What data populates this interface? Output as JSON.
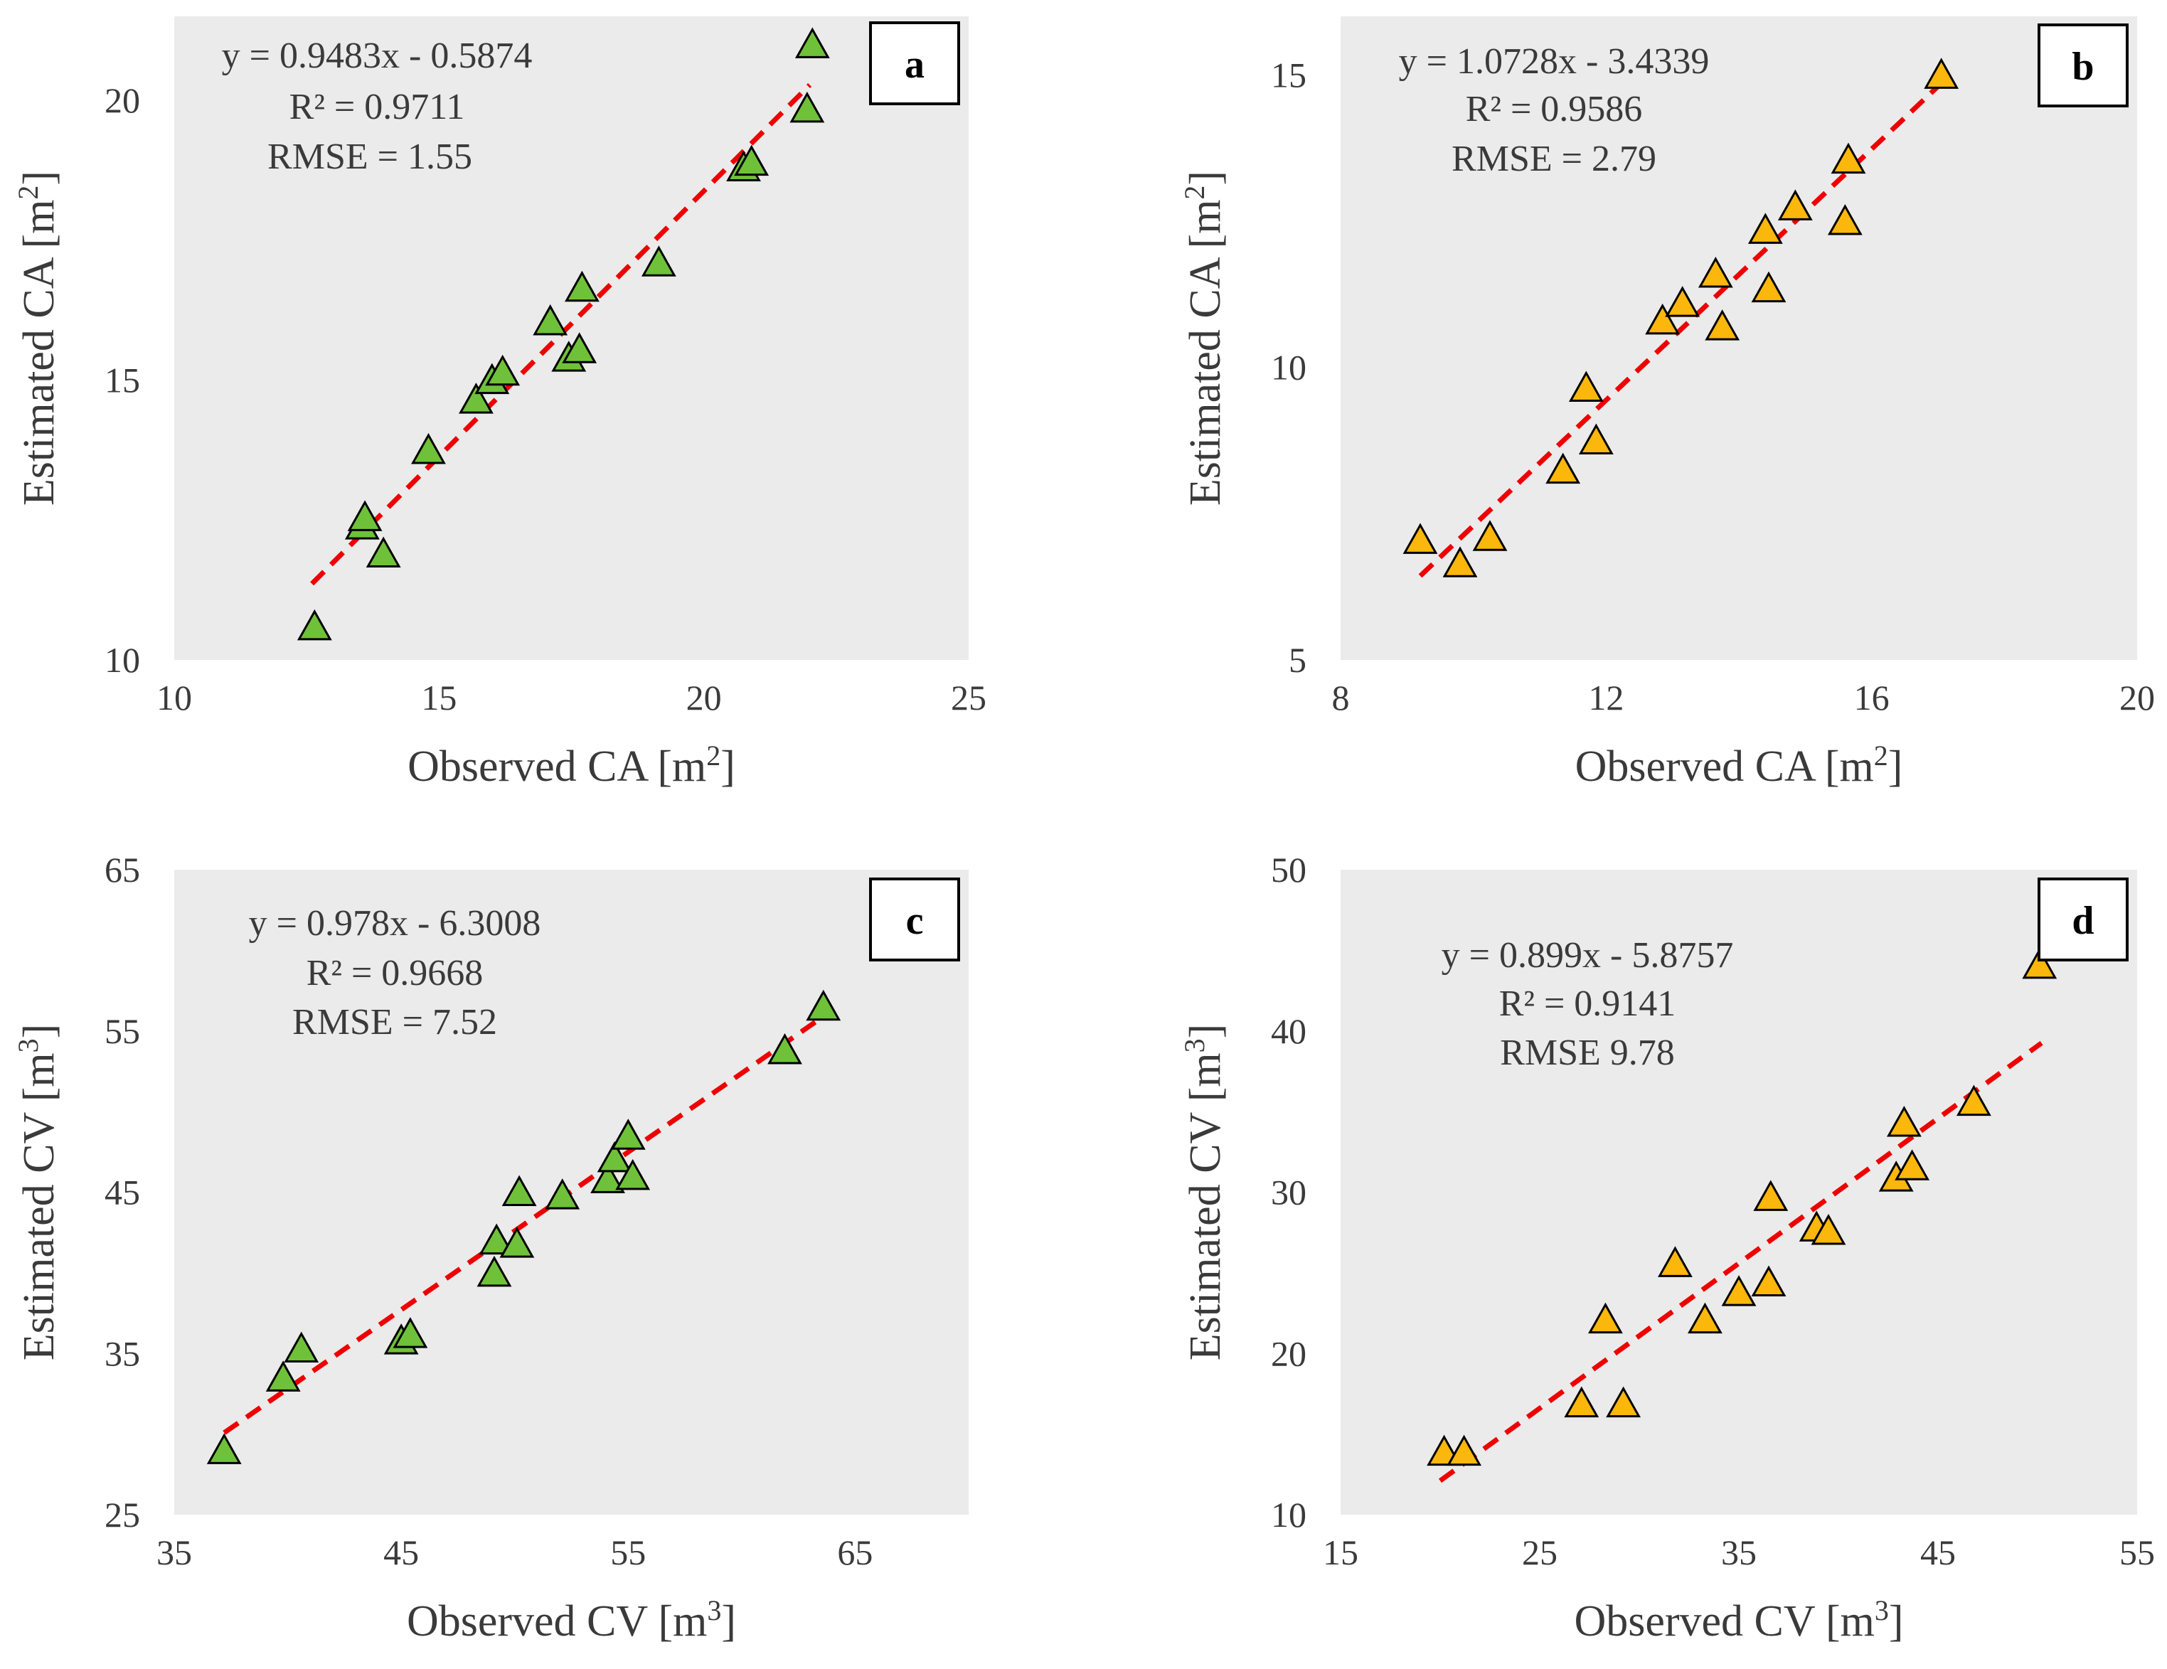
{
  "colors": {
    "panel_bg": "#ebebeb",
    "trend": "#ee0000",
    "green_marker": "#70c13a",
    "orange_marker": "#fbb70b",
    "marker_edge": "#000000"
  },
  "chart_data": [
    {
      "type": "scatter",
      "panel_label": "a",
      "xlabel": "Observed CA [m",
      "xlabel_sup": "2",
      "xlabel_end": "]",
      "ylabel": "Estimated CA [m",
      "ylabel_sup": "2",
      "ylabel_end": "]",
      "xlim": [
        10,
        25
      ],
      "ylim": [
        10,
        21.5
      ],
      "xticks": [
        10,
        15,
        20,
        25
      ],
      "yticks": [
        10,
        15,
        20
      ],
      "grid": false,
      "marker": "triangle",
      "marker_color": "green",
      "equation_lines": [
        "y = 0.9483x - 0.5874",
        "R² = 0.9711",
        "RMSE = 1.55"
      ],
      "trendline": {
        "slope": 0.9483,
        "intercept": -0.5874,
        "x_range": [
          12.6,
          22
        ]
      },
      "x": [
        12.65,
        13.55,
        13.6,
        13.95,
        14.8,
        15.7,
        16.0,
        16.2,
        17.1,
        17.45,
        17.65,
        17.7,
        19.15,
        20.75,
        20.9,
        21.95,
        22.05
      ],
      "y": [
        10.6,
        12.4,
        12.55,
        11.9,
        13.75,
        14.65,
        15.0,
        15.15,
        16.05,
        15.4,
        15.55,
        16.65,
        17.1,
        18.8,
        18.9,
        19.85,
        21.0
      ]
    },
    {
      "type": "scatter",
      "panel_label": "b",
      "xlabel": "Observed CA [m",
      "xlabel_sup": "2",
      "xlabel_end": "]",
      "ylabel": "Estimated CA [m",
      "ylabel_sup": "2",
      "ylabel_end": "]",
      "xlim": [
        8,
        20
      ],
      "ylim": [
        5,
        16
      ],
      "xticks": [
        8,
        12,
        16,
        20
      ],
      "yticks": [
        5,
        10,
        15
      ],
      "grid": false,
      "marker": "triangle",
      "marker_color": "orange",
      "equation_lines": [
        "y = 1.0728x - 3.4339",
        "R² = 0.9586",
        "RMSE = 2.79"
      ],
      "trendline": {
        "slope": 1.0728,
        "intercept": -3.4339,
        "x_range": [
          9.2,
          17
        ]
      },
      "x": [
        9.2,
        9.8,
        10.25,
        11.35,
        11.7,
        11.85,
        12.85,
        13.15,
        13.65,
        13.75,
        14.4,
        14.45,
        14.85,
        15.6,
        15.65,
        17.05
      ],
      "y": [
        7.05,
        6.65,
        7.1,
        8.25,
        9.65,
        8.75,
        10.8,
        11.1,
        11.6,
        10.7,
        12.35,
        11.35,
        12.75,
        12.5,
        13.55,
        15.0
      ]
    },
    {
      "type": "scatter",
      "panel_label": "c",
      "xlabel": "Observed CV [m",
      "xlabel_sup": "3",
      "xlabel_end": "]",
      "ylabel": "Estimated CV [m",
      "ylabel_sup": "3",
      "ylabel_end": "]",
      "xlim": [
        35,
        70
      ],
      "ylim": [
        25,
        65
      ],
      "xticks": [
        35,
        45,
        55,
        65
      ],
      "yticks": [
        25,
        35,
        45,
        55,
        65
      ],
      "grid": false,
      "marker": "triangle",
      "marker_color": "green",
      "equation_lines": [
        "y = 0.978x - 6.3008",
        "R² = 0.9668",
        "RMSE = 7.52"
      ],
      "trendline": {
        "slope": 0.978,
        "intercept": -6.3008,
        "x_range": [
          37.2,
          63.5
        ]
      },
      "x": [
        37.2,
        39.8,
        40.6,
        45.0,
        45.4,
        49.1,
        49.2,
        50.1,
        50.2,
        52.1,
        54.1,
        54.4,
        55.0,
        55.2,
        61.9,
        63.6
      ],
      "y": [
        29.0,
        33.5,
        35.3,
        35.8,
        36.2,
        40.0,
        42.0,
        41.8,
        45.0,
        44.8,
        45.8,
        47.1,
        48.5,
        46.0,
        53.8,
        56.5
      ]
    },
    {
      "type": "scatter",
      "panel_label": "d",
      "xlabel": "Observed CV [m",
      "xlabel_sup": "3",
      "xlabel_end": "]",
      "ylabel": "Estimated CV [m",
      "ylabel_sup": "3",
      "ylabel_end": "]",
      "xlim": [
        15,
        55
      ],
      "ylim": [
        10,
        50
      ],
      "xticks": [
        15,
        25,
        35,
        45,
        55
      ],
      "yticks": [
        10,
        20,
        30,
        40,
        50
      ],
      "grid": false,
      "marker": "triangle",
      "marker_color": "orange",
      "equation_lines": [
        "y = 0.899x - 5.8757",
        "R² = 0.9141",
        "RMSE 9.78"
      ],
      "trendline": {
        "slope": 0.899,
        "intercept": -5.8757,
        "x_range": [
          20,
          50.2
        ]
      },
      "x": [
        20.2,
        21.2,
        27.1,
        28.3,
        29.2,
        31.8,
        33.3,
        35.0,
        36.5,
        36.6,
        38.9,
        39.5,
        42.9,
        43.3,
        43.7,
        46.8,
        50.1
      ],
      "y": [
        13.9,
        13.9,
        16.9,
        22.1,
        16.9,
        25.6,
        22.1,
        23.8,
        24.4,
        29.7,
        27.8,
        27.6,
        30.9,
        34.3,
        31.6,
        35.6,
        44.1
      ]
    }
  ]
}
